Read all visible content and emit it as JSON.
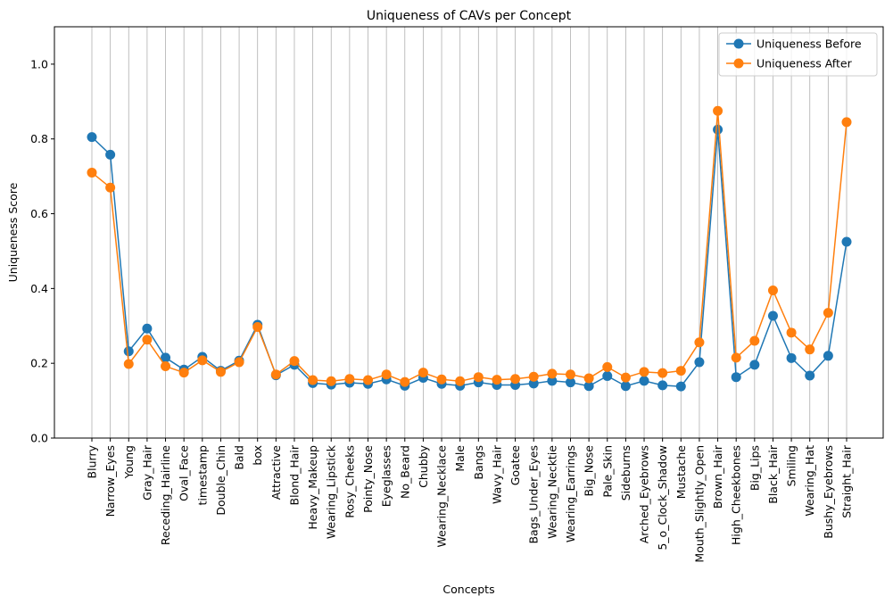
{
  "chart_data": {
    "type": "line",
    "title": "Uniqueness of CAVs per Concept",
    "xlabel": "Concepts",
    "ylabel": "Uniqueness Score",
    "ylim": [
      0.0,
      1.1
    ],
    "yticks": [
      0.0,
      0.2,
      0.4,
      0.6,
      0.8,
      1.0
    ],
    "ytick_labels": [
      "0.0",
      "0.2",
      "0.4",
      "0.6",
      "0.8",
      "1.0"
    ],
    "grid": "vertical",
    "legend_position": "top-right",
    "categories": [
      "Blurry",
      "Narrow_Eyes",
      "Young",
      "Gray_Hair",
      "Receding_Hairline",
      "Oval_Face",
      "timestamp",
      "Double_Chin",
      "Bald",
      "box",
      "Attractive",
      "Blond_Hair",
      "Heavy_Makeup",
      "Wearing_Lipstick",
      "Rosy_Cheeks",
      "Pointy_Nose",
      "Eyeglasses",
      "No_Beard",
      "Chubby",
      "Wearing_Necklace",
      "Male",
      "Bangs",
      "Wavy_Hair",
      "Goatee",
      "Bags_Under_Eyes",
      "Wearing_Necktie",
      "Wearing_Earrings",
      "Big_Nose",
      "Pale_Skin",
      "Sideburns",
      "Arched_Eyebrows",
      "5_o_Clock_Shadow",
      "Mustache",
      "Mouth_Slightly_Open",
      "Brown_Hair",
      "High_Cheekbones",
      "Big_Lips",
      "Black_Hair",
      "Smiling",
      "Wearing_Hat",
      "Bushy_Eyebrows",
      "Straight_Hair"
    ],
    "series": [
      {
        "name": "Uniqueness Before",
        "color": "#1f77b4",
        "values": [
          0.805,
          0.758,
          0.232,
          0.293,
          0.215,
          0.183,
          0.217,
          0.18,
          0.207,
          0.303,
          0.168,
          0.196,
          0.147,
          0.143,
          0.148,
          0.145,
          0.157,
          0.14,
          0.161,
          0.145,
          0.14,
          0.149,
          0.142,
          0.142,
          0.146,
          0.153,
          0.149,
          0.139,
          0.166,
          0.139,
          0.153,
          0.141,
          0.138,
          0.203,
          0.825,
          0.163,
          0.196,
          0.327,
          0.214,
          0.167,
          0.22,
          0.525
        ]
      },
      {
        "name": "Uniqueness After",
        "color": "#ff7f0e",
        "values": [
          0.71,
          0.67,
          0.198,
          0.263,
          0.192,
          0.175,
          0.208,
          0.177,
          0.203,
          0.297,
          0.17,
          0.206,
          0.155,
          0.152,
          0.158,
          0.155,
          0.17,
          0.15,
          0.175,
          0.157,
          0.152,
          0.163,
          0.156,
          0.158,
          0.164,
          0.172,
          0.17,
          0.16,
          0.19,
          0.162,
          0.177,
          0.174,
          0.18,
          0.256,
          0.875,
          0.215,
          0.26,
          0.395,
          0.282,
          0.237,
          0.335,
          0.845
        ]
      }
    ]
  }
}
